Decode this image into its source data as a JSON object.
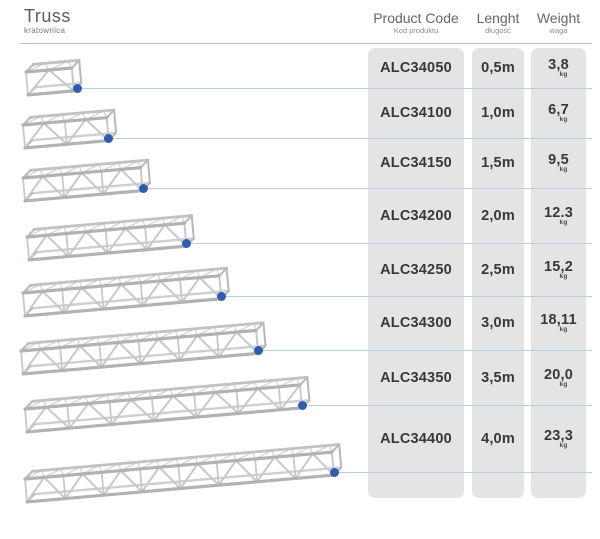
{
  "header": {
    "title": "Truss",
    "subtitle": "kratownica"
  },
  "columns": [
    {
      "label": "Product Code",
      "sublabel": "Kod produktu"
    },
    {
      "label": "Lenght",
      "sublabel": "długość"
    },
    {
      "label": "Weight",
      "sublabel": "waga"
    }
  ],
  "rows": [
    {
      "code": "ALC34050",
      "length": "0,5m",
      "weight": "3,8",
      "weight_unit": "kg"
    },
    {
      "code": "ALC34100",
      "length": "1,0m",
      "weight": "6,7",
      "weight_unit": "kg"
    },
    {
      "code": "ALC34150",
      "length": "1,5m",
      "weight": "9,5",
      "weight_unit": "kg"
    },
    {
      "code": "ALC34200",
      "length": "2,0m",
      "weight": "12.3",
      "weight_unit": "kg"
    },
    {
      "code": "ALC34250",
      "length": "2,5m",
      "weight": "15,2",
      "weight_unit": "kg"
    },
    {
      "code": "ALC34300",
      "length": "3,0m",
      "weight": "18,11",
      "weight_unit": "kg"
    },
    {
      "code": "ALC34350",
      "length": "3,5m",
      "weight": "20,0",
      "weight_unit": "kg"
    },
    {
      "code": "ALC34400",
      "length": "4,0m",
      "weight": "23,3",
      "weight_unit": "kg"
    }
  ],
  "colors": {
    "accent_dot": "#2d5cb0",
    "connector_line": "#b9cde4",
    "header_underline": "#a9c3de",
    "column_bg": "#e4e4e4",
    "truss_chord": "#b0b3b6",
    "truss_web": "#c6c9cc"
  }
}
